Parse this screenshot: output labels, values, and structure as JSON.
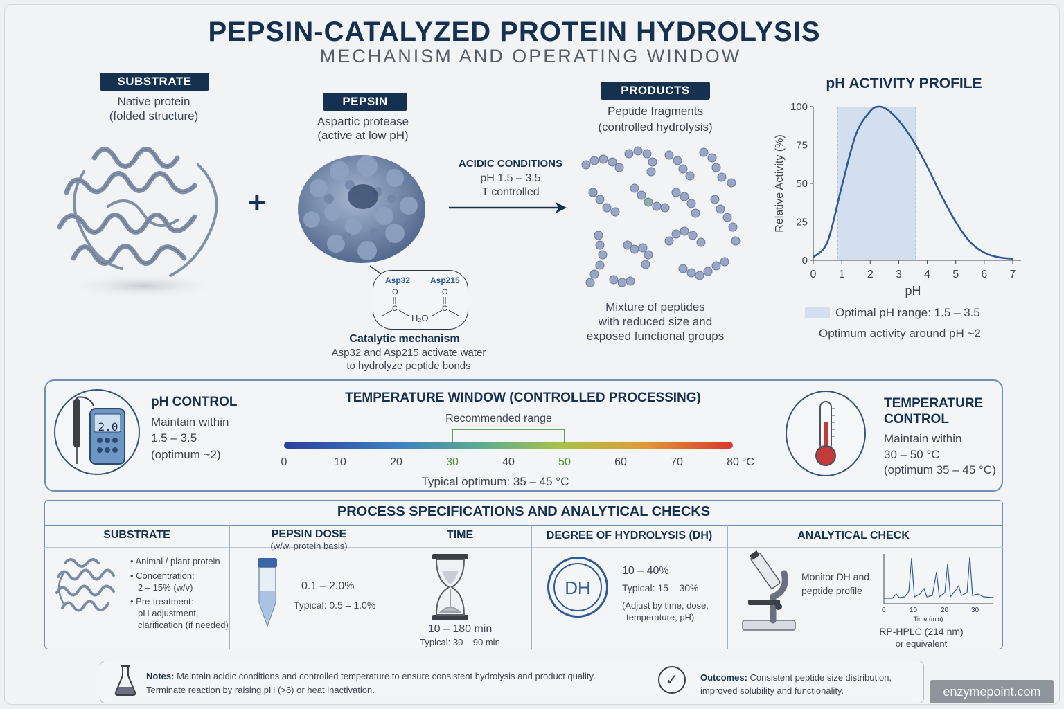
{
  "header": {
    "title": "PEPSIN-CATALYZED PROTEIN HYDROLYSIS",
    "subtitle": "MECHANISM AND OPERATING WINDOW"
  },
  "reaction": {
    "substrate": {
      "label": "SUBSTRATE",
      "desc_line1": "Native protein",
      "desc_line2": "(folded structure)"
    },
    "plus": "+",
    "pepsin": {
      "label": "PEPSIN",
      "desc_line1": "Aspartic protease",
      "desc_line2": "(active at low pH)"
    },
    "conditions": {
      "title": "ACIDIC CONDITIONS",
      "line1": "pH 1.5 – 3.5",
      "line2": "T controlled"
    },
    "products": {
      "label": "PRODUCTS",
      "desc_line1": "Peptide fragments",
      "desc_line2": "(controlled hydrolysis)",
      "mixture_line1": "Mixture of peptides",
      "mixture_line2": "with reduced size and",
      "mixture_line3": "exposed functional groups"
    },
    "mechanism": {
      "asp1": "Asp32",
      "asp2": "Asp215",
      "o": "O",
      "c": "C",
      "water": "H₂O",
      "title": "Catalytic mechanism",
      "line1": "Asp32 and Asp215 activate water",
      "line2": "to hydrolyze peptide bonds"
    }
  },
  "ph_profile": {
    "title": "pH ACTIVITY PROFILE",
    "legend_optimal": "Optimal pH range: 1.5 – 3.5",
    "legend_optimum": "Optimum activity around pH ~2"
  },
  "chart_data": {
    "type": "line",
    "title": "pH ACTIVITY PROFILE",
    "xlabel": "pH",
    "ylabel": "Relative Activity (%)",
    "xlim": [
      0,
      7
    ],
    "ylim": [
      0,
      100
    ],
    "xticks": [
      "0",
      "1",
      "2",
      "3",
      "4",
      "5",
      "6",
      "7"
    ],
    "yticks": [
      "0",
      "25",
      "50",
      "75",
      "100"
    ],
    "shaded_band": [
      0.85,
      3.6
    ],
    "x": [
      0,
      0.5,
      1,
      1.5,
      2,
      2.3,
      2.6,
      3,
      3.5,
      4,
      4.5,
      5,
      5.5,
      6,
      6.5,
      7
    ],
    "y": [
      2,
      12,
      48,
      82,
      97,
      100,
      98,
      91,
      78,
      61,
      42,
      25,
      12,
      5,
      2,
      1
    ],
    "color": "#2f5a98"
  },
  "controls": {
    "ph": {
      "title": "pH CONTROL",
      "line1": "Maintain within",
      "line2": "1.5 – 3.5",
      "line3": "(optimum ~2)",
      "meter_reading": "2.0"
    },
    "temp_window": {
      "title": "TEMPERATURE WINDOW (CONTROLLED PROCESSING)",
      "recommended": "Recommended range",
      "ticks": [
        "0",
        "10",
        "20",
        "30",
        "40",
        "50",
        "60",
        "70",
        "80"
      ],
      "unit": "°C",
      "optimum": "Typical optimum: 35 – 45 °C",
      "range_min": 30,
      "range_max": 50,
      "scale_max": 80
    },
    "temp": {
      "title_line1": "TEMPERATURE",
      "title_line2": "CONTROL",
      "line1": "Maintain within",
      "line2": "30 – 50 °C",
      "line3": "(optimum 35 – 45 °C)"
    }
  },
  "specs": {
    "title": "PROCESS SPECIFICATIONS AND ANALYTICAL CHECKS",
    "substrate": {
      "header": "SUBSTRATE",
      "b1": "Animal / plant protein",
      "b2": "Concentration:",
      "b2b": "2 – 15% (w/v)",
      "b3": "Pre-treatment:",
      "b3b": "pH adjustment,",
      "b3c": "clarification (if needed)"
    },
    "dose": {
      "header": "PEPSIN DOSE",
      "sub": "(w/w, protein basis)",
      "value": "0.1 – 2.0%",
      "typical": "Typical:  0.5 – 1.0%"
    },
    "time": {
      "header": "TIME",
      "value": "10 – 180 min",
      "typical": "Typical:  30 – 90 min"
    },
    "dh": {
      "header": "DEGREE OF HYDROLYSIS (DH)",
      "badge": "DH",
      "value": "10 – 40%",
      "typical": "Typical:  15 – 30%",
      "note1": "(Adjust by time, dose,",
      "note2": "temperature, pH)"
    },
    "analytical": {
      "header": "ANALYTICAL CHECK",
      "line1": "Monitor DH and",
      "line2": "peptide profile",
      "xticks": [
        "0",
        "10",
        "20",
        "30"
      ],
      "xlabel": "Time (min)",
      "method": "RP-HPLC (214 nm)",
      "alt": "or equivalent"
    }
  },
  "footer": {
    "notes_label": "Notes:",
    "notes_line1": "Maintain acidic conditions and controlled temperature to ensure consistent hydrolysis and product quality.",
    "notes_line2": "Terminate reaction by raising pH (>6) or heat inactivation.",
    "outcomes_label": "Outcomes:",
    "outcomes_line1": "Consistent peptide size distribution,",
    "outcomes_line2": "improved solubility and functionality.",
    "watermark": "enzymepoint.com"
  }
}
